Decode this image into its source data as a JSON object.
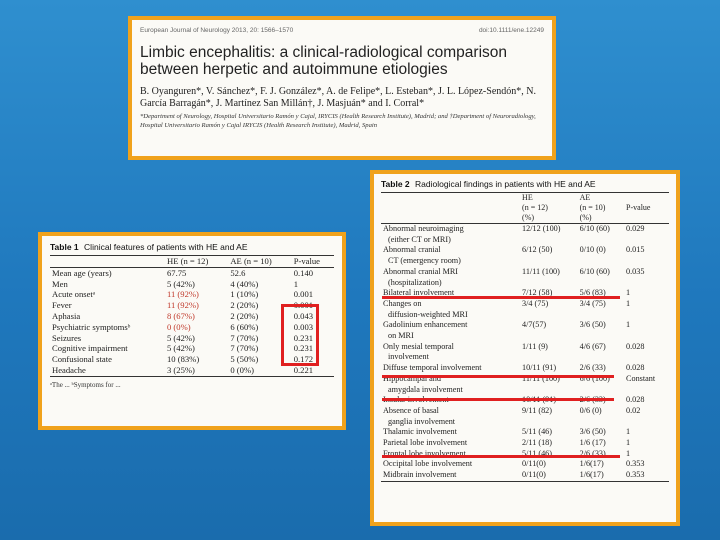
{
  "title_card": {
    "journal": "European Journal of Neurology 2013, 20: 1566–1570",
    "doi": "doi:10.1111/ene.12249",
    "title": "Limbic encephalitis: a clinical-radiological comparison between herpetic and autoimmune etiologies",
    "authors": "B. Oyanguren*, V. Sánchez*, F. J. González*, A. de Felipe*, L. Esteban*, J. L. López-Sendón*, N. García Barragán*, J. Martínez San Millán†, J. Masjuán* and I. Corral*",
    "affiliation": "*Department of Neurology, Hospital Universitario Ramón y Cajal, IRYCIS (Health Research Institute), Madrid; and †Department of Neuroradiology, Hospital Universitario Ramón y Cajal IRYCIS (Health Research Institute), Madrid, Spain"
  },
  "table1": {
    "label": "Table 1",
    "caption": "Clinical features of patients with HE and AE",
    "headers": [
      "",
      "HE (n = 12)",
      "AE (n = 10)",
      "P-value"
    ],
    "rows": [
      [
        "Mean age (years)",
        "67.75",
        "52.6",
        "0.140"
      ],
      [
        "Men",
        "5 (42%)",
        "4 (40%)",
        "1"
      ],
      [
        "Acute onsetᵃ",
        "11 (92%)",
        "1 (10%)",
        "0.001"
      ],
      [
        "Fever",
        "11 (92%)",
        "2 (20%)",
        "0.001"
      ],
      [
        "Aphasia",
        "8 (67%)",
        "2 (20%)",
        "0.043"
      ],
      [
        "Psychiatric symptomsᵇ",
        "0 (0%)",
        "6 (60%)",
        "0.003"
      ],
      [
        "Seizures",
        "5 (42%)",
        "7 (70%)",
        "0.231"
      ],
      [
        "Cognitive impairment",
        "5 (42%)",
        "7 (70%)",
        "0.231"
      ],
      [
        "Confusional state",
        "10 (83%)",
        "5 (50%)",
        "0.172"
      ],
      [
        "Headache",
        "3 (25%)",
        "0 (0%)",
        "0.221"
      ]
    ],
    "footnote": "ᵃThe ... ᵇSymptoms for ..."
  },
  "table2": {
    "label": "Table 2",
    "caption": "Radiological findings in patients with HE and AE",
    "header_row1": [
      "",
      "HE",
      "AE",
      ""
    ],
    "header_row2": [
      "",
      "(n = 12)",
      "(n = 10)",
      "P-value"
    ],
    "header_row3": [
      "",
      "(%)",
      "(%)",
      ""
    ],
    "rows": [
      [
        "Abnormal neuroimaging",
        "12/12 (100)",
        "6/10 (60)",
        "0.029"
      ],
      [
        "(either CT or MRI)",
        "",
        "",
        ""
      ],
      [
        "Abnormal cranial",
        "6/12 (50)",
        "0/10 (0)",
        "0.015"
      ],
      [
        "CT (emergency room)",
        "",
        "",
        ""
      ],
      [
        "Abnormal cranial MRI",
        "11/11 (100)",
        "6/10 (60)",
        "0.035"
      ],
      [
        "(hospitalization)",
        "",
        "",
        ""
      ],
      [
        "Bilateral involvement",
        "7/12 (58)",
        "5/6 (83)",
        "1"
      ],
      [
        "Changes on",
        "3/4 (75)",
        "3/4 (75)",
        "1"
      ],
      [
        "diffusion-weighted MRI",
        "",
        "",
        ""
      ],
      [
        "Gadolinium enhancement",
        "4/7(57)",
        "3/6 (50)",
        "1"
      ],
      [
        "on MRI",
        "",
        "",
        ""
      ],
      [
        "Only mesial temporal",
        "1/11 (9)",
        "4/6 (67)",
        "0.028"
      ],
      [
        "involvement",
        "",
        "",
        ""
      ],
      [
        "Diffuse temporal involvement",
        "10/11 (91)",
        "2/6 (33)",
        "0.028"
      ],
      [
        "Hippocampal and",
        "11/11 (100)",
        "6/6 (100)",
        "Constant"
      ],
      [
        "amygdala involvement",
        "",
        "",
        ""
      ],
      [
        "Insular involvement",
        "10/11 (91)",
        "2/6 (33)",
        "0.028"
      ],
      [
        "Absence of basal",
        "9/11 (82)",
        "0/6 (0)",
        "0.02"
      ],
      [
        "ganglia involvement",
        "",
        "",
        ""
      ],
      [
        "Thalamic involvement",
        "5/11 (46)",
        "3/6 (50)",
        "1"
      ],
      [
        "Parietal lobe involvement",
        "2/11 (18)",
        "1/6 (17)",
        "1"
      ],
      [
        "Frontal lobe involvement",
        "5/11 (46)",
        "2/6 (33)",
        "1"
      ],
      [
        "Occipital lobe involvement",
        "0/11(0)",
        "1/6(17)",
        "0.353"
      ],
      [
        "Midbrain involvement",
        "0/11(0)",
        "1/6(17)",
        "0.353"
      ]
    ]
  }
}
